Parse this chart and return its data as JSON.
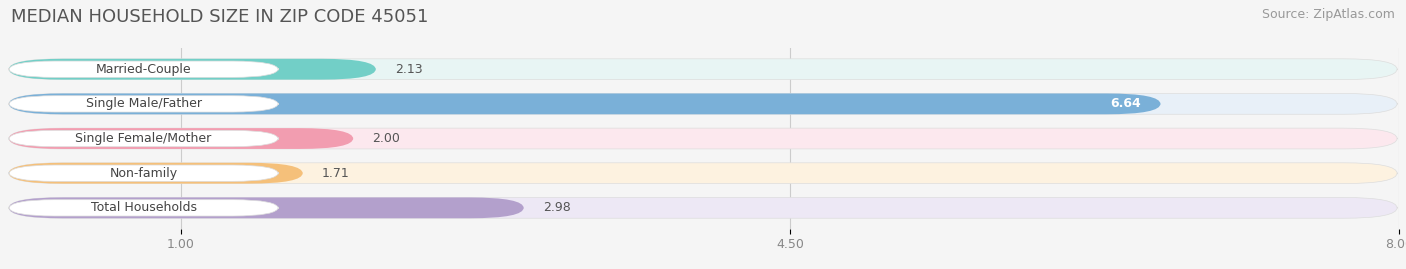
{
  "title": "MEDIAN HOUSEHOLD SIZE IN ZIP CODE 45051",
  "source": "Source: ZipAtlas.com",
  "categories": [
    "Married-Couple",
    "Single Male/Father",
    "Single Female/Mother",
    "Non-family",
    "Total Households"
  ],
  "values": [
    2.13,
    6.64,
    2.0,
    1.71,
    2.98
  ],
  "bar_colors": [
    "#72cfc7",
    "#7ab0d8",
    "#f29db0",
    "#f5c07a",
    "#b3a0cc"
  ],
  "bar_bg_colors": [
    "#e8f5f4",
    "#e8f0f8",
    "#fce8ee",
    "#fdf2e0",
    "#ede8f5"
  ],
  "value_inside": [
    false,
    true,
    false,
    false,
    false
  ],
  "xmin": 0,
  "xmax": 8.0,
  "xtick_values": [
    1.0,
    4.5,
    8.0
  ],
  "xtick_labels": [
    "1.00",
    "4.50",
    "8.00"
  ],
  "background_color": "#f5f5f5",
  "title_fontsize": 13,
  "source_fontsize": 9,
  "label_fontsize": 9,
  "value_fontsize": 9
}
